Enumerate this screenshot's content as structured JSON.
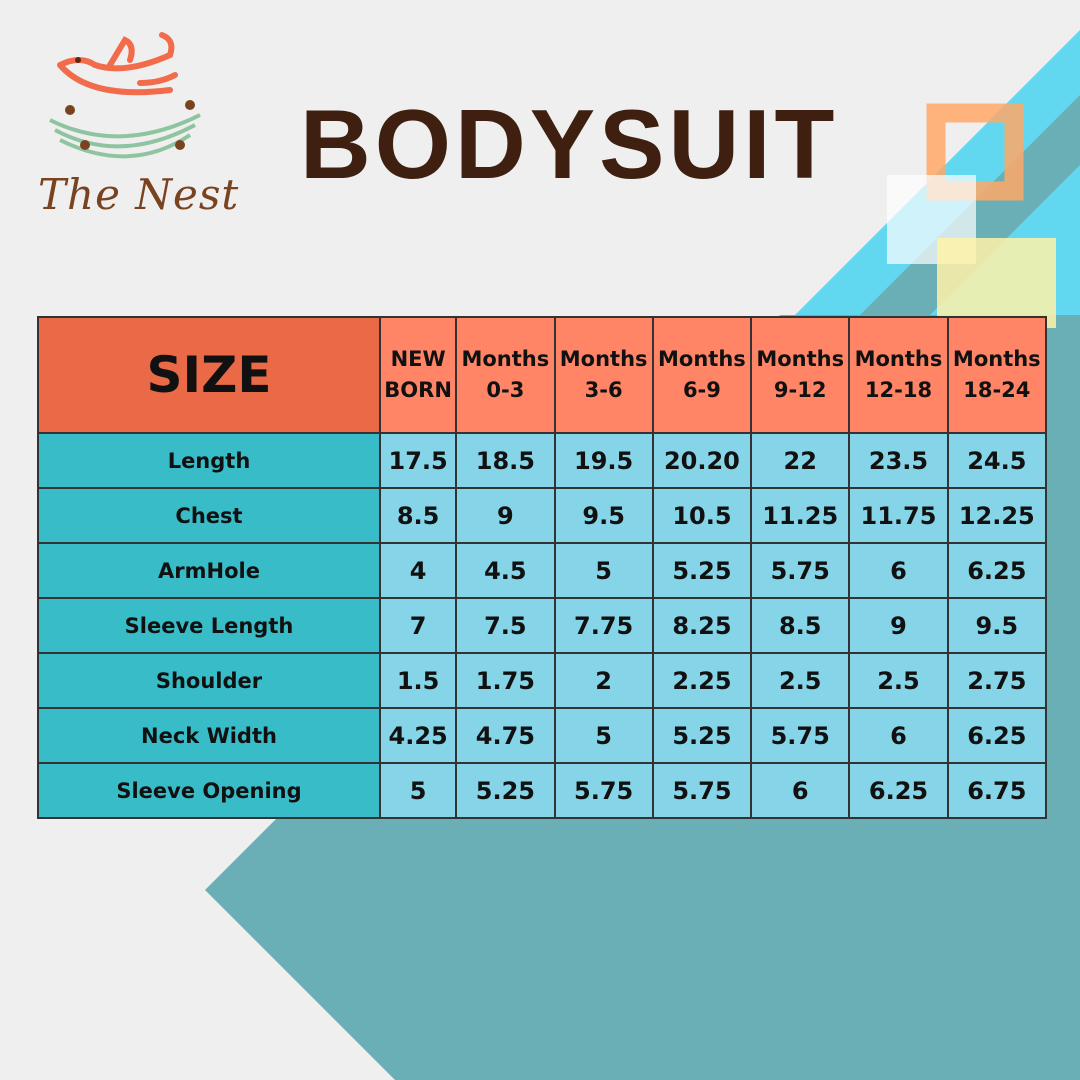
{
  "brand": {
    "name": "The Nest",
    "colors": {
      "bird": "#f26b4a",
      "nest": "#8fc4a0",
      "text": "#7a4320"
    }
  },
  "title": "BODYSUIT",
  "table": {
    "corner_label": "SIZE",
    "columns": [
      [
        "NEW",
        "BORN"
      ],
      [
        "Months",
        "0-3"
      ],
      [
        "Months",
        "3-6"
      ],
      [
        "Months",
        "6-9"
      ],
      [
        "Months",
        "9-12"
      ],
      [
        "Months",
        "12-18"
      ],
      [
        "Months",
        "18-24"
      ]
    ],
    "rows": [
      {
        "label": "Length",
        "values": [
          "17.5",
          "18.5",
          "19.5",
          "20.20",
          "22",
          "23.5",
          "24.5"
        ]
      },
      {
        "label": "Chest",
        "values": [
          "8.5",
          "9",
          "9.5",
          "10.5",
          "11.25",
          "11.75",
          "12.25"
        ]
      },
      {
        "label": "ArmHole",
        "values": [
          "4",
          "4.5",
          "5",
          "5.25",
          "5.75",
          "6",
          "6.25"
        ]
      },
      {
        "label": "Sleeve Length",
        "values": [
          "7",
          "7.5",
          "7.75",
          "8.25",
          "8.5",
          "9",
          "9.5"
        ]
      },
      {
        "label": "Shoulder",
        "values": [
          "1.5",
          "1.75",
          "2",
          "2.25",
          "2.5",
          "2.5",
          "2.75"
        ]
      },
      {
        "label": "Neck Width",
        "values": [
          "4.25",
          "4.75",
          "5",
          "5.25",
          "5.75",
          "6",
          "6.25"
        ]
      },
      {
        "label": "Sleeve Opening",
        "values": [
          "5",
          "5.25",
          "5.75",
          "5.75",
          "6",
          "6.25",
          "6.75"
        ]
      }
    ]
  },
  "colors": {
    "header": "#ff8566",
    "corner": "#ea6a47",
    "label_col": "#38bcc8",
    "cell": "#85d4e8",
    "title": "#3f2010",
    "cyan": "#62d8f0",
    "teal": "#6aafb5"
  }
}
